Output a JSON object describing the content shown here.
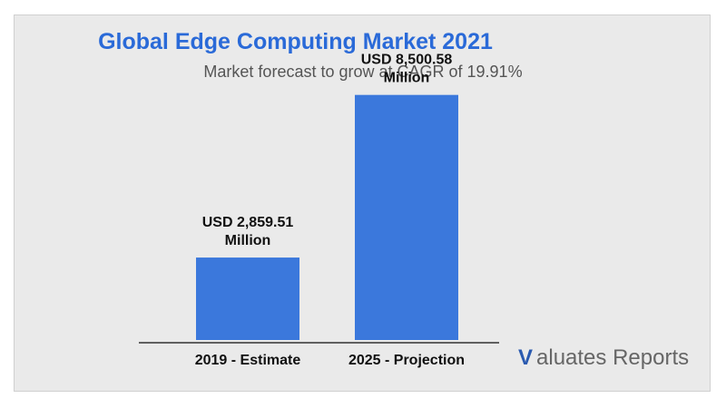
{
  "colors": {
    "background": "#eaeaea",
    "title": "#2a6ad8",
    "bar": "#3b78dc",
    "logo_v": "#2a5ab0"
  },
  "brand": {
    "logo_v": "V",
    "logo_text": "aluates Reports"
  },
  "chart_data": {
    "type": "bar",
    "title": "Global Edge Computing Market 2021",
    "subtitle": "Market forecast to grow at CAGR of 19.91%",
    "xlabel": "",
    "ylabel": "",
    "categories": [
      "2019 - Estimate",
      "2025 - Projection"
    ],
    "values": [
      2859.51,
      8500.58
    ],
    "data_labels": [
      [
        "USD 2,859.51",
        "Million"
      ],
      [
        "USD 8,500.58",
        "Million"
      ]
    ],
    "grid": false,
    "legend": "none"
  }
}
